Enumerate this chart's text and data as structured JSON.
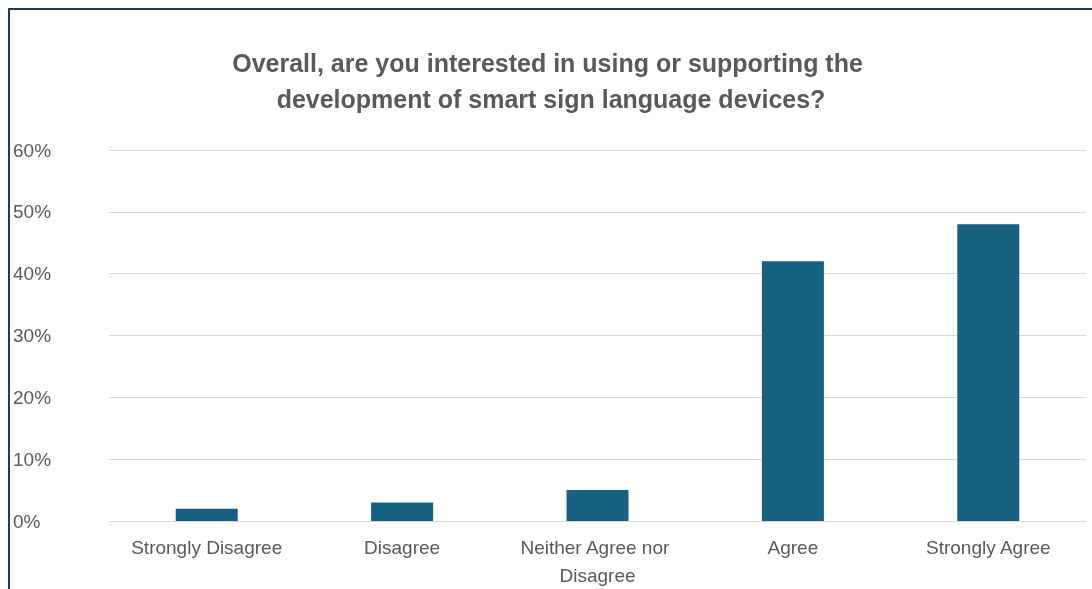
{
  "chart_data": {
    "type": "bar",
    "title": "Overall, are you interested in using or supporting the development of smart sign language devices?",
    "categories": [
      "Strongly Disagree",
      "Disagree",
      "Neither Agree nor Disagree",
      "Agree",
      "Strongly Agree"
    ],
    "values": [
      2,
      3,
      5,
      42,
      48
    ],
    "color": "#17607f",
    "ylim": [
      0,
      60
    ],
    "yticks": [
      {
        "value": 0,
        "label": "0%"
      },
      {
        "value": 10,
        "label": "10%"
      },
      {
        "value": 20,
        "label": "20%"
      },
      {
        "value": 30,
        "label": "30%"
      },
      {
        "value": 40,
        "label": "40%"
      },
      {
        "value": 50,
        "label": "50%"
      },
      {
        "value": 60,
        "label": "60%"
      }
    ],
    "grid": "y"
  }
}
